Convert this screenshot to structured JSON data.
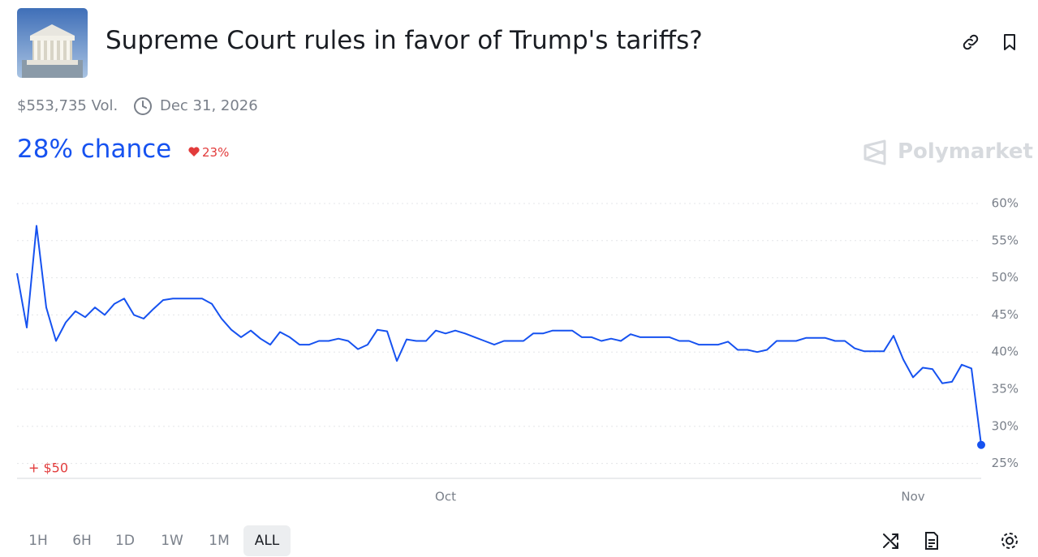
{
  "header": {
    "title": "Supreme Court rules in favor of Trump's tariffs?",
    "volume": "$553,735 Vol.",
    "end_date": "Dec 31, 2026",
    "chance": "28% chance",
    "change": "23%",
    "brand": "Polymarket"
  },
  "chart_data": {
    "type": "line",
    "annotation": "+ $50",
    "categories": [
      null,
      null,
      null,
      null,
      null,
      null,
      null,
      null,
      null,
      null,
      null,
      null,
      null,
      null,
      null,
      null,
      null,
      null,
      null,
      null,
      null,
      null,
      null,
      null,
      null,
      null,
      null,
      null,
      null,
      null,
      null,
      null,
      null,
      null,
      null,
      null,
      null,
      null,
      null,
      null,
      null,
      null,
      null,
      null,
      "Oct",
      null,
      null,
      null,
      null,
      null,
      null,
      null,
      null,
      null,
      null,
      null,
      null,
      null,
      null,
      null,
      null,
      null,
      null,
      null,
      null,
      null,
      null,
      null,
      null,
      null,
      null,
      null,
      null,
      null,
      null,
      null,
      null,
      null,
      null,
      null,
      null,
      null,
      null,
      null,
      null,
      null,
      null,
      null,
      null,
      null,
      null,
      null,
      "Nov",
      null,
      null,
      null,
      null,
      null,
      null,
      null
    ],
    "series": [
      {
        "color": "#1652f0",
        "values": [
          50.6,
          43.3,
          57,
          46,
          41.5,
          44,
          45.5,
          44.7,
          46,
          45,
          46.5,
          47.2,
          45,
          44.5,
          45.8,
          47,
          47.2,
          47.2,
          47.2,
          47.2,
          46.5,
          44.5,
          43,
          42,
          42.9,
          41.8,
          41,
          42.7,
          42,
          41,
          41,
          41.5,
          41.5,
          41.8,
          41.5,
          40.4,
          41,
          43,
          42.8,
          38.8,
          41.7,
          41.5,
          41.5,
          42.9,
          42.5,
          42.9,
          42.5,
          42,
          41.5,
          41,
          41.5,
          41.5,
          41.5,
          42.5,
          42.5,
          42.9,
          42.9,
          42.9,
          42,
          42,
          41.5,
          41.8,
          41.5,
          42.4,
          42,
          42,
          42,
          42,
          41.5,
          41.5,
          41,
          41,
          41,
          41.4,
          40.3,
          40.3,
          40,
          40.3,
          41.5,
          41.5,
          41.5,
          41.9,
          41.9,
          41.9,
          41.5,
          41.5,
          40.5,
          40.1,
          40.1,
          40.1,
          42.2,
          39,
          36.6,
          37.9,
          37.7,
          35.8,
          36,
          38.3,
          37.8,
          27.5
        ]
      }
    ],
    "ylim": [
      23,
      61
    ],
    "yticks": [
      {
        "value": 25,
        "label": "25%"
      },
      {
        "value": 30,
        "label": "30%"
      },
      {
        "value": 35,
        "label": "35%"
      },
      {
        "value": 40,
        "label": "40%"
      },
      {
        "value": 45,
        "label": "45%"
      },
      {
        "value": 50,
        "label": "50%"
      },
      {
        "value": 55,
        "label": "55%"
      },
      {
        "value": 60,
        "label": "60%"
      }
    ],
    "grid": true
  },
  "controls": {
    "ranges": [
      "1H",
      "6H",
      "1D",
      "1W",
      "1M",
      "ALL"
    ],
    "selected": "ALL"
  }
}
